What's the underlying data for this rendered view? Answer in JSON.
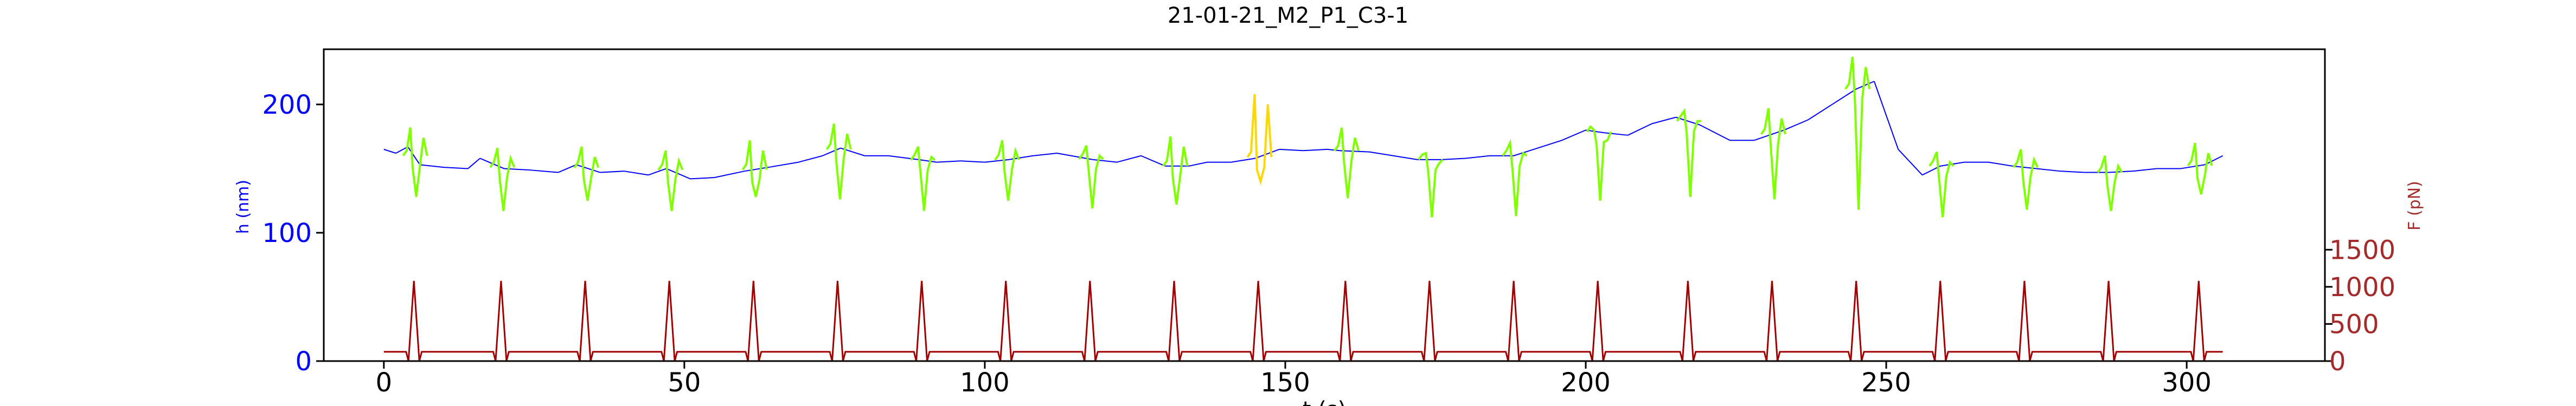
{
  "chart_data": {
    "type": "line",
    "title": "21-01-21_M2_P1_C3-1",
    "xlabel": "t (s)",
    "ylabel_left": "h (nm)",
    "ylabel_right": "F (pN)",
    "xlim": [
      -10,
      323
    ],
    "ylim_left": [
      0,
      243
    ],
    "ylim_right": [
      0,
      4200
    ],
    "x_ticks": [
      0,
      50,
      100,
      150,
      200,
      250,
      300
    ],
    "y_left_ticks": [
      0,
      100,
      200
    ],
    "y_right_ticks": [
      0,
      500,
      1000,
      1500
    ],
    "grid": false,
    "colors": {
      "height": "#0000ff",
      "pulse": "#7fff00",
      "highlight": "#ffd700",
      "force": "#a00000",
      "left_axis_text": "#0000ff",
      "right_axis_text": "#a52a2a"
    },
    "series": [
      {
        "axis": "left",
        "color": "#0000ff",
        "x": [
          0,
          2,
          4,
          6,
          10,
          14,
          16,
          20,
          24,
          29,
          32,
          36,
          40,
          44,
          47,
          51,
          55,
          60,
          64,
          69,
          73,
          76,
          80,
          84,
          89,
          92,
          96,
          100,
          104,
          108,
          112,
          118,
          122,
          126,
          130,
          134,
          137,
          141,
          145,
          149,
          153,
          157,
          159,
          164,
          168,
          172,
          176,
          180,
          184,
          188,
          192,
          196,
          200,
          203,
          207,
          211,
          215,
          219,
          224,
          228,
          233,
          237,
          241,
          245,
          248,
          252,
          256,
          259,
          263,
          267,
          271,
          275,
          279,
          283,
          287,
          291,
          295,
          299,
          303,
          306
        ],
        "y": [
          165,
          162,
          167,
          153,
          151,
          150,
          158,
          150,
          149,
          147,
          153,
          147,
          148,
          145,
          150,
          142,
          143,
          148,
          151,
          155,
          160,
          166,
          160,
          160,
          157,
          155,
          156,
          155,
          157,
          160,
          162,
          157,
          155,
          160,
          152,
          152,
          155,
          155,
          158,
          165,
          164,
          165,
          164,
          163,
          160,
          157,
          157,
          158,
          160,
          160,
          166,
          172,
          180,
          178,
          176,
          185,
          190,
          184,
          172,
          172,
          180,
          188,
          200,
          212,
          218,
          165,
          145,
          152,
          155,
          155,
          152,
          150,
          148,
          147,
          147,
          148,
          150,
          150,
          153,
          160
        ]
      },
      {
        "axis": "right",
        "color": "#a00000",
        "baseline": 125,
        "peak": 1080,
        "peak_times": [
          5,
          19.5,
          33.5,
          47.5,
          61.5,
          75.5,
          89.5,
          103.5,
          117.5,
          131.5,
          145.5,
          160,
          174,
          188,
          202,
          217,
          231,
          245,
          259,
          273,
          287,
          302
        ],
        "x_end": 306
      }
    ],
    "pulse_spikes": [
      {
        "t": 5,
        "up": 182,
        "down": 128,
        "color": "#7fff00"
      },
      {
        "t": 19.5,
        "up": 166,
        "down": 117,
        "color": "#7fff00"
      },
      {
        "t": 33.5,
        "up": 167,
        "down": 125,
        "color": "#7fff00"
      },
      {
        "t": 47.5,
        "up": 164,
        "down": 117,
        "color": "#7fff00"
      },
      {
        "t": 61.5,
        "up": 172,
        "down": 128,
        "color": "#7fff00"
      },
      {
        "t": 75.5,
        "up": 185,
        "down": 126,
        "color": "#7fff00"
      },
      {
        "t": 89.5,
        "up": 167,
        "down": 117,
        "color": "#7fff00"
      },
      {
        "t": 103.5,
        "up": 172,
        "down": 125,
        "color": "#7fff00"
      },
      {
        "t": 117.5,
        "up": 168,
        "down": 119,
        "color": "#7fff00"
      },
      {
        "t": 131.5,
        "up": 175,
        "down": 122,
        "color": "#7fff00"
      },
      {
        "t": 145.5,
        "up": 208,
        "down": 140,
        "color": "#ffd700"
      },
      {
        "t": 160,
        "up": 182,
        "down": 127,
        "color": "#7fff00"
      },
      {
        "t": 174,
        "up": 162,
        "down": 112,
        "color": "#7fff00"
      },
      {
        "t": 188,
        "up": 170,
        "down": 113,
        "color": "#7fff00"
      },
      {
        "t": 202,
        "up": 180,
        "down": 125,
        "color": "#7fff00"
      },
      {
        "t": 217,
        "up": 195,
        "down": 128,
        "color": "#7fff00"
      },
      {
        "t": 231,
        "up": 197,
        "down": 126,
        "color": "#7fff00"
      },
      {
        "t": 245,
        "up": 237,
        "down": 118,
        "color": "#7fff00"
      },
      {
        "t": 259,
        "up": 163,
        "down": 112,
        "color": "#7fff00"
      },
      {
        "t": 273,
        "up": 165,
        "down": 118,
        "color": "#7fff00"
      },
      {
        "t": 287,
        "up": 160,
        "down": 117,
        "color": "#7fff00"
      },
      {
        "t": 302,
        "up": 170,
        "down": 130,
        "color": "#7fff00"
      }
    ]
  }
}
